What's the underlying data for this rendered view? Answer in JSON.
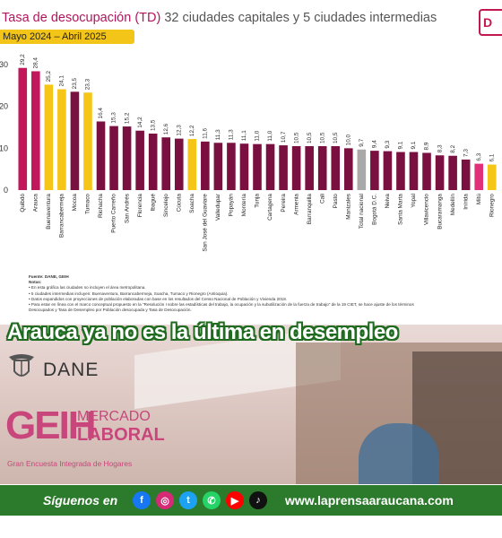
{
  "header": {
    "title_main": "Tasa de desocupación (TD)",
    "title_rest": "32 ciudades capitales y 5 ciudades intermedias",
    "period": "Mayo 2024 – Abril 2025"
  },
  "chart_data": {
    "type": "bar",
    "title": "Tasa de desocupación (TD) 32 ciudades capitales y 5 ciudades intermedias",
    "ylim": [
      0,
      30
    ],
    "yticks": [
      0,
      10,
      20,
      30
    ],
    "categories": [
      "Quibdó",
      "Arauca",
      "Buenaventura",
      "Barrancabermeja",
      "Mocoa",
      "Tumaco",
      "Riohacha",
      "Puerto Carreño",
      "San Andrés",
      "Florencia",
      "Ibagué",
      "Sincelejo",
      "Cúcuta",
      "Soacha",
      "San José del Guaviare",
      "Valledupar",
      "Popayán",
      "Montería",
      "Tunja",
      "Cartagena",
      "Pereira",
      "Armenia",
      "Barranquilla",
      "Cali",
      "Pasto",
      "Manizales",
      "Total nacional",
      "Bogotá D.C.",
      "Neiva",
      "Santa Marta",
      "Yopal",
      "Villavicencio",
      "Bucaramanga",
      "Medellín",
      "Inírida",
      "Mitú",
      "Rionegro"
    ],
    "values": [
      29.2,
      28.4,
      25.2,
      24.1,
      23.5,
      23.3,
      16.4,
      15.3,
      15.2,
      14.2,
      13.5,
      12.6,
      12.3,
      12.2,
      11.6,
      11.3,
      11.3,
      11.1,
      11.0,
      11.0,
      10.7,
      10.5,
      10.5,
      10.5,
      10.5,
      10.0,
      9.7,
      9.4,
      9.3,
      9.1,
      9.1,
      8.9,
      8.3,
      8.2,
      7.3,
      6.3,
      6.1
    ],
    "value_labels": [
      "29,2",
      "28,4",
      "25,2",
      "24,1",
      "23,5",
      "23,3",
      "16,4",
      "15,3",
      "15,2",
      "14,2",
      "13,5",
      "12,6",
      "12,3",
      "12,2",
      "11,6",
      "11,3",
      "11,3",
      "11,1",
      "11,0",
      "11,0",
      "10,7",
      "10,5",
      "10,5",
      "10,5",
      "10,5",
      "10,0",
      "9,7",
      "9,4",
      "9,3",
      "9,1",
      "9,1",
      "8,9",
      "8,3",
      "8,2",
      "7,3",
      "6,3",
      "6,1"
    ],
    "colors": [
      "#c2185b",
      "#c2185b",
      "#f5c518",
      "#f5c518",
      "#7a1040",
      "#f5c518",
      "#7a1040",
      "#7a1040",
      "#7a1040",
      "#7a1040",
      "#7a1040",
      "#7a1040",
      "#7a1040",
      "#f5c518",
      "#7a1040",
      "#7a1040",
      "#7a1040",
      "#7a1040",
      "#7a1040",
      "#7a1040",
      "#7a1040",
      "#7a1040",
      "#7a1040",
      "#7a1040",
      "#7a1040",
      "#7a1040",
      "#a9a9a9",
      "#7a1040",
      "#7a1040",
      "#7a1040",
      "#7a1040",
      "#7a1040",
      "#7a1040",
      "#7a1040",
      "#7a1040",
      "#e0307a",
      "#f5c518"
    ]
  },
  "notes": {
    "source": "Fuente: DANE, GEIH",
    "heading": "Notas:",
    "lines": [
      "• En esta gráfica las ciudades no incluyen el área metropolitana.",
      "• 5 ciudades intermedias incluyen: Buenaventura, Barrancabermeja, Soacha, Tumaco y Rionegro (Antioquia).",
      "• Datos expandidos con proyecciones de población elaboradas con base en los resultados del Censo Nacional de Población y Vivienda 2018.",
      "• Para estar en línea con el marco conceptual propuesto en la \"Resolución I sobre las estadísticas del trabajo, la ocupación y la subutilización de la fuerza de trabajo\" de la 19 CIET, se hace ajuste de los términos",
      "Desocupados y Tasa de Desempleo por Población desocupada y Tasa de Desocupación."
    ]
  },
  "headline": "Arauca ya no es la última en desempleo",
  "branding": {
    "dane": "DANE",
    "geih_mark": "GEIH",
    "mercado": "MERCADO",
    "laboral": "LABORAL",
    "geih_sub": "Gran Encuesta Integrada de Hogares",
    "logo_initial": "D"
  },
  "footer": {
    "follow": "Síguenos en",
    "site": "www.laprensaaraucana.com",
    "socials": [
      {
        "icon": "facebook-icon",
        "glyph": "f",
        "color": "#1877f2"
      },
      {
        "icon": "instagram-icon",
        "glyph": "◎",
        "color": "#d62976"
      },
      {
        "icon": "twitter-icon",
        "glyph": "t",
        "color": "#1da1f2"
      },
      {
        "icon": "whatsapp-icon",
        "glyph": "✆",
        "color": "#25d366"
      },
      {
        "icon": "youtube-icon",
        "glyph": "▶",
        "color": "#ff0000"
      },
      {
        "icon": "tiktok-icon",
        "glyph": "♪",
        "color": "#111111"
      }
    ]
  }
}
